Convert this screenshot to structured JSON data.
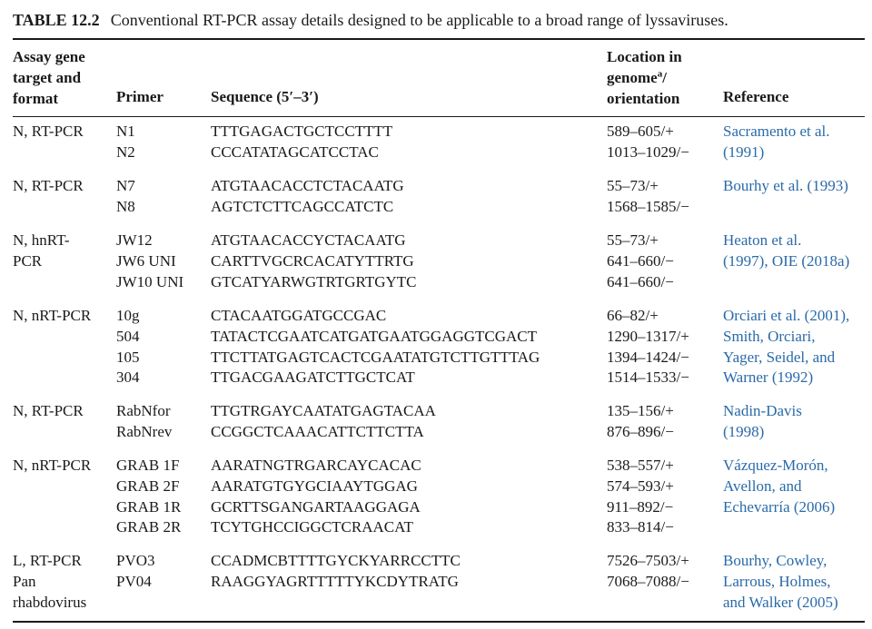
{
  "caption": {
    "label": "TABLE 12.2",
    "text": "Conventional RT-PCR assay details designed to be applicable to a broad range of lyssaviruses."
  },
  "headers": {
    "assay": [
      "Assay gene",
      "target and",
      "format"
    ],
    "primer": "Primer",
    "sequence": "Sequence (5′–3′)",
    "location_line1": "Location in",
    "location_line2a": "genome",
    "location_sup": "a",
    "location_line2b": "/",
    "location_line3": "orientation",
    "reference": "Reference"
  },
  "rows": [
    {
      "assay": [
        "N, RT-PCR"
      ],
      "primers": [
        "N1",
        "N2"
      ],
      "sequences": [
        "TTTGAGACTGCTCCTTTT",
        "CCCATATAGCATCCTAC"
      ],
      "locations": [
        "589–605/+",
        "1013–1029/−"
      ],
      "reference": [
        "Sacramento et al.",
        "(1991)"
      ]
    },
    {
      "assay": [
        "N, RT-PCR"
      ],
      "primers": [
        "N7",
        "N8"
      ],
      "sequences": [
        "ATGTAACACCTCTACAATG",
        "AGTCTCTTCAGCCATCTC"
      ],
      "locations": [
        "55–73/+",
        "1568–1585/−"
      ],
      "reference": [
        "Bourhy et al. (1993)"
      ]
    },
    {
      "assay": [
        "N, hnRT-",
        "PCR"
      ],
      "primers": [
        "JW12",
        "JW6 UNI",
        "JW10 UNI"
      ],
      "sequences": [
        "ATGTAACACCYCTACAATG",
        "CARTTVGCRCACATYTTRTG",
        "GTCATYARWGTRTGRTGYTC"
      ],
      "locations": [
        "55–73/+",
        "641–660/−",
        "641–660/−"
      ],
      "reference": [
        "Heaton et al.",
        "(1997), OIE (2018a)"
      ]
    },
    {
      "assay": [
        "N, nRT-PCR"
      ],
      "primers": [
        "10g",
        "504",
        "105",
        "304"
      ],
      "sequences": [
        "CTACAATGGATGCCGAC",
        "TATACTCGAATCATGATGAATGGAGGTCGACT",
        "TTCTTATGAGTCACTCGAATATGTCTTGTTTAG",
        "TTGACGAAGATCTTGCTCAT"
      ],
      "locations": [
        "66–82/+",
        "1290–1317/+",
        "1394–1424/−",
        "1514–1533/−"
      ],
      "reference": [
        "Orciari et al. (2001),",
        "Smith, Orciari,",
        "Yager, Seidel, and",
        "Warner (1992)"
      ]
    },
    {
      "assay": [
        "N, RT-PCR"
      ],
      "primers": [
        "RabNfor",
        "RabNrev"
      ],
      "sequences": [
        "TTGTRGAYCAATATGAGTACAA",
        "CCGGCTCAAACATTCTTCTTA"
      ],
      "locations": [
        "135–156/+",
        "876–896/−"
      ],
      "reference": [
        "Nadin-Davis",
        "(1998)"
      ]
    },
    {
      "assay": [
        "N, nRT-PCR"
      ],
      "primers": [
        "GRAB 1F",
        "GRAB 2F",
        "GRAB 1R",
        "GRAB 2R"
      ],
      "sequences": [
        "AARATNGTRGARCAYCACAC",
        "AARATGTGYGCIAAYTGGAG",
        "GCRTTSGANGARTAAGGAGA",
        "TCYTGHCCIGGCTCRAACAT"
      ],
      "locations": [
        "538–557/+",
        "574–593/+",
        "911–892/−",
        "833–814/−"
      ],
      "reference": [
        "Vázquez-Morón,",
        "Avellon, and",
        "Echevarría (2006)"
      ]
    },
    {
      "assay": [
        "L, RT-PCR",
        "Pan",
        "rhabdovirus"
      ],
      "primers": [
        "PVO3",
        "PV04"
      ],
      "sequences": [
        "CCADMCBTTTTGYCKYARRCCTTC",
        "RAAGGYAGRTTTTTYKCDYTRATG"
      ],
      "locations": [
        "7526–7503/+",
        "7068–7088/−"
      ],
      "reference": [
        "Bourhy, Cowley,",
        "Larrous, Holmes,",
        "and Walker (2005)"
      ]
    }
  ]
}
